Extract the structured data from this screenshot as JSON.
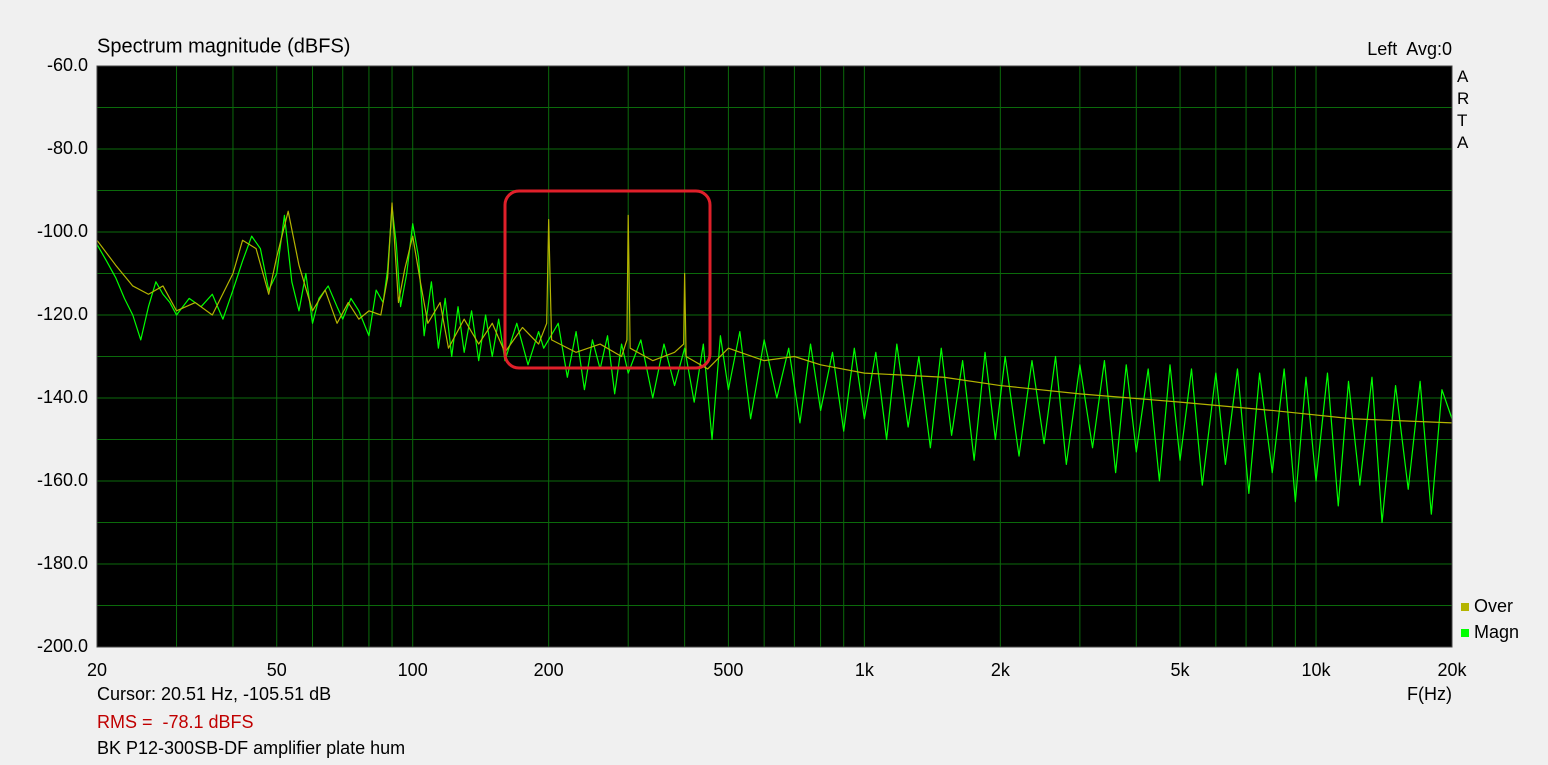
{
  "chart_data": {
    "type": "line",
    "title": "Spectrum magnitude (dBFS)",
    "channel_label": "Left  Avg:0",
    "side_label": "ARTA",
    "x_label": "F(Hz)",
    "cursor_text": "Cursor: 20.51 Hz, -105.51 dB",
    "rms_text": "RMS =  -78.1 dBFS",
    "caption": "BK P12-300SB-DF amplifier plate hum",
    "log_x": true,
    "grid": true,
    "legend": "bottom-right",
    "xlim": [
      20,
      20000
    ],
    "ylim": [
      -200,
      -60
    ],
    "xticks": [
      20,
      50,
      100,
      200,
      500,
      {
        "value": 1000,
        "label": "1k"
      },
      {
        "value": 2000,
        "label": "2k"
      },
      {
        "value": 5000,
        "label": "5k"
      },
      {
        "value": 10000,
        "label": "10k"
      },
      {
        "value": 20000,
        "label": "20k"
      }
    ],
    "xgrid": [
      30,
      40,
      60,
      70,
      80,
      90,
      300,
      400,
      600,
      700,
      800,
      900,
      3000,
      4000,
      6000,
      7000,
      8000,
      9000
    ],
    "yticks": [
      {
        "value": -60,
        "label": "-60.0"
      },
      {
        "value": -80,
        "label": "-80.0"
      },
      {
        "value": -100,
        "label": "-100.0"
      },
      {
        "value": -120,
        "label": "-120.0"
      },
      {
        "value": -140,
        "label": "-140.0"
      },
      {
        "value": -160,
        "label": "-160.0"
      },
      {
        "value": -180,
        "label": "-180.0"
      },
      {
        "value": -200,
        "label": "-200.0"
      }
    ],
    "ygrid": [
      -70,
      -90,
      -110,
      -130,
      -150,
      -170,
      -190
    ],
    "series": [
      {
        "name": "Magn",
        "color": "#00ff00",
        "x": [
          20,
          21,
          22,
          23,
          24,
          25,
          26,
          27,
          28,
          29,
          30,
          32,
          34,
          36,
          38,
          40,
          42,
          44,
          46,
          48,
          50,
          52,
          54,
          56,
          58,
          60,
          62,
          65,
          68,
          70,
          73,
          76,
          80,
          83,
          86,
          88,
          90,
          92,
          94,
          97,
          100,
          103,
          106,
          110,
          114,
          118,
          122,
          126,
          130,
          135,
          140,
          145,
          150,
          155,
          160,
          170,
          180,
          190,
          195,
          210,
          220,
          230,
          240,
          250,
          260,
          270,
          280,
          290,
          300,
          320,
          340,
          360,
          380,
          400,
          420,
          440,
          460,
          480,
          500,
          530,
          560,
          600,
          640,
          680,
          720,
          760,
          800,
          850,
          900,
          950,
          1000,
          1060,
          1120,
          1180,
          1250,
          1320,
          1400,
          1480,
          1560,
          1650,
          1750,
          1850,
          1950,
          2050,
          2200,
          2350,
          2500,
          2650,
          2800,
          3000,
          3200,
          3400,
          3600,
          3800,
          4000,
          4250,
          4500,
          4750,
          5000,
          5300,
          5600,
          6000,
          6300,
          6700,
          7100,
          7500,
          8000,
          8500,
          9000,
          9500,
          10000,
          10600,
          11200,
          11800,
          12500,
          13300,
          14000,
          15000,
          16000,
          17000,
          18000,
          19000,
          20000
        ],
        "values": [
          -103,
          -107,
          -111,
          -116,
          -120,
          -126,
          -118,
          -112,
          -115,
          -117,
          -120,
          -116,
          -118,
          -115,
          -121,
          -114,
          -107,
          -101,
          -104,
          -114,
          -110,
          -96,
          -112,
          -119,
          -110,
          -122,
          -116,
          -113,
          -118,
          -121,
          -116,
          -119,
          -125,
          -114,
          -117,
          -109,
          -94,
          -103,
          -118,
          -110,
          -98,
          -106,
          -125,
          -112,
          -128,
          -116,
          -130,
          -118,
          -129,
          -119,
          -131,
          -120,
          -130,
          -121,
          -131,
          -122,
          -132,
          -124,
          -128,
          -122,
          -135,
          -124,
          -138,
          -126,
          -133,
          -125,
          -139,
          -127,
          -134,
          -126,
          -140,
          -127,
          -137,
          -128,
          -141,
          -127,
          -150,
          -125,
          -138,
          -124,
          -145,
          -126,
          -140,
          -128,
          -146,
          -127,
          -143,
          -129,
          -148,
          -128,
          -145,
          -129,
          -150,
          -127,
          -147,
          -130,
          -152,
          -128,
          -149,
          -131,
          -155,
          -129,
          -150,
          -130,
          -154,
          -131,
          -151,
          -130,
          -156,
          -132,
          -152,
          -131,
          -158,
          -132,
          -153,
          -133,
          -160,
          -132,
          -155,
          -133,
          -161,
          -134,
          -156,
          -133,
          -163,
          -134,
          -158,
          -133,
          -165,
          -135,
          -160,
          -134,
          -166,
          -136,
          -161,
          -135,
          -170,
          -137,
          -162,
          -136,
          -168,
          -138,
          -145
        ]
      },
      {
        "name": "Over",
        "color": "#b4b400",
        "x": [
          20,
          22,
          24,
          26,
          28,
          30,
          33,
          36,
          40,
          42,
          45,
          48,
          50,
          53,
          56,
          60,
          64,
          68,
          72,
          76,
          80,
          85,
          88,
          90,
          93,
          96,
          100,
          104,
          108,
          115,
          120,
          130,
          140,
          150,
          160,
          175,
          190,
          198,
          200,
          203,
          230,
          260,
          290,
          298,
          300,
          303,
          340,
          380,
          398,
          400,
          403,
          450,
          500,
          600,
          700,
          800,
          1000,
          1500,
          2000,
          3000,
          5000,
          8000,
          12000,
          20000
        ],
        "values": [
          -102,
          -108,
          -113,
          -115,
          -113,
          -119,
          -117,
          -120,
          -110,
          -102,
          -104,
          -115,
          -106,
          -95,
          -108,
          -119,
          -114,
          -122,
          -117,
          -121,
          -119,
          -120,
          -111,
          -93,
          -117,
          -109,
          -101,
          -112,
          -122,
          -117,
          -128,
          -121,
          -127,
          -122,
          -129,
          -123,
          -127,
          -122,
          -97,
          -126,
          -129,
          -127,
          -130,
          -126,
          -96,
          -128,
          -131,
          -129,
          -127,
          -110,
          -130,
          -133,
          -128,
          -131,
          -130,
          -132,
          -134,
          -135,
          -137,
          -139,
          -141,
          -143,
          -145,
          -146
        ]
      }
    ]
  }
}
